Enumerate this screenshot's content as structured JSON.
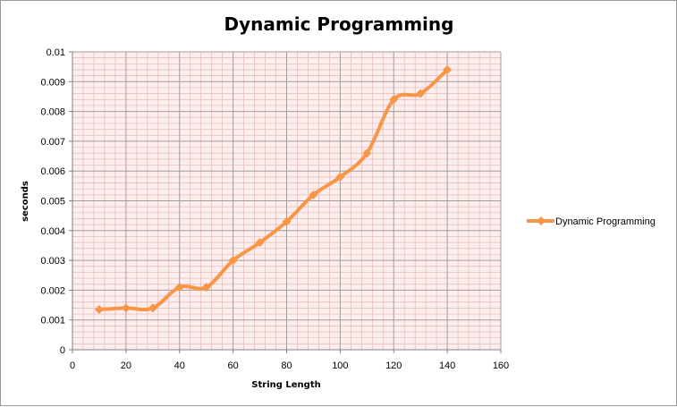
{
  "chart_data": {
    "type": "line",
    "title": "Dynamic Programming",
    "xlabel": "String Length",
    "ylabel": "seconds",
    "xlim": [
      0,
      160
    ],
    "ylim": [
      0,
      0.01
    ],
    "x_ticks": [
      "0",
      "20",
      "40",
      "60",
      "80",
      "100",
      "120",
      "140",
      "160"
    ],
    "y_ticks": [
      "0",
      "0.001",
      "0.002",
      "0.003",
      "0.004",
      "0.005",
      "0.006",
      "0.007",
      "0.008",
      "0.009",
      "0.01"
    ],
    "grid": true,
    "legend_position": "right",
    "series": [
      {
        "name": "Dynamic Programming",
        "color": "#f79646",
        "x": [
          10,
          20,
          30,
          40,
          50,
          60,
          70,
          80,
          90,
          100,
          110,
          120,
          130,
          140
        ],
        "y": [
          0.00135,
          0.0014,
          0.0014,
          0.0021,
          0.0021,
          0.003,
          0.0036,
          0.0043,
          0.0052,
          0.0058,
          0.0066,
          0.0084,
          0.0086,
          0.0094
        ]
      }
    ]
  }
}
